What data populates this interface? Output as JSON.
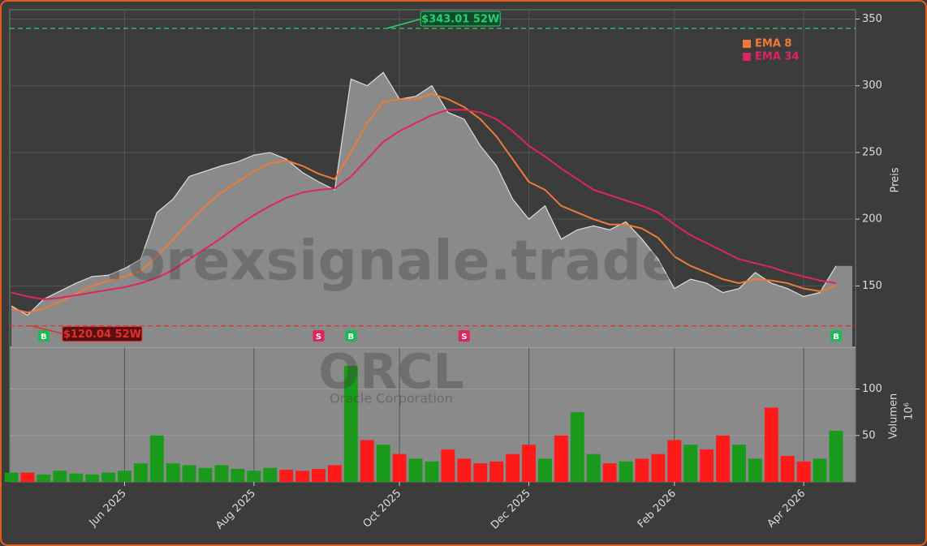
{
  "chart_data": [
    {
      "type": "area",
      "watermark": "forexsignale.trade",
      "ticker": "ORCL",
      "company": "Oracle Corporation",
      "ylabel": "Preis",
      "ylim": [
        104,
        357
      ],
      "yticks": [
        150,
        200,
        250,
        300,
        350
      ],
      "grid": true,
      "color": "#8a8a8a",
      "values": [
        135,
        128,
        140,
        146,
        152,
        157,
        158,
        163,
        170,
        205,
        215,
        232,
        236,
        240,
        243,
        248,
        250,
        245,
        235,
        228,
        222,
        305,
        300,
        310,
        290,
        292,
        300,
        280,
        275,
        255,
        240,
        215,
        200,
        210,
        185,
        192,
        195,
        192,
        198,
        185,
        170,
        148,
        155,
        152,
        145,
        148,
        160,
        152,
        148,
        142,
        145,
        165
      ],
      "series": [
        {
          "name": "EMA 8",
          "color": "#f07a3a",
          "values": [
            133,
            130,
            133,
            138,
            144,
            150,
            154,
            157,
            161,
            172,
            185,
            198,
            210,
            220,
            228,
            236,
            242,
            244,
            240,
            234,
            230,
            250,
            272,
            288,
            290,
            290,
            294,
            290,
            284,
            275,
            262,
            245,
            228,
            222,
            210,
            205,
            200,
            196,
            196,
            193,
            186,
            172,
            165,
            160,
            155,
            152,
            155,
            154,
            152,
            148,
            146,
            150
          ]
        },
        {
          "name": "EMA 34",
          "color": "#e0245e",
          "values": [
            145,
            142,
            140,
            141,
            143,
            145,
            147,
            149,
            152,
            156,
            162,
            170,
            178,
            186,
            195,
            203,
            210,
            216,
            220,
            222,
            223,
            232,
            245,
            258,
            266,
            272,
            278,
            282,
            282,
            280,
            275,
            266,
            255,
            247,
            238,
            230,
            222,
            218,
            214,
            210,
            205,
            196,
            188,
            182,
            176,
            170,
            167,
            164,
            160,
            157,
            154,
            152
          ]
        }
      ],
      "legend": "upper right",
      "annotations": [
        {
          "text": "$343.01 52W",
          "value": 343.01,
          "color": "#2ecc71"
        },
        {
          "text": "$120.04 52W",
          "value": 120.04,
          "color": "#e03030"
        }
      ],
      "signals": [
        null,
        null,
        "B",
        null,
        null,
        null,
        null,
        null,
        null,
        null,
        null,
        null,
        null,
        null,
        null,
        null,
        null,
        null,
        null,
        "S",
        null,
        "B",
        null,
        null,
        null,
        null,
        null,
        null,
        "S",
        null,
        null,
        null,
        null,
        null,
        null,
        null,
        null,
        null,
        null,
        null,
        null,
        null,
        null,
        null,
        null,
        null,
        null,
        null,
        null,
        null,
        null,
        "B"
      ],
      "signal_colors": {
        "B": "#1db954",
        "S": "#e0245e"
      }
    },
    {
      "type": "bar",
      "ylabel": "Volumen",
      "scale_label": "10⁶",
      "ylim": [
        0,
        145
      ],
      "yticks": [
        50,
        100
      ],
      "grid": true,
      "up_color": "#1a9a1a",
      "down_color": "#ff1a1a",
      "categories": [
        null,
        null,
        null,
        null,
        null,
        null,
        null,
        "Jun 2025",
        null,
        null,
        null,
        null,
        null,
        null,
        null,
        "Aug 2025",
        null,
        null,
        null,
        null,
        null,
        null,
        null,
        null,
        "Oct 2025",
        null,
        null,
        null,
        null,
        null,
        null,
        null,
        "Dec 2025",
        null,
        null,
        null,
        null,
        null,
        null,
        null,
        null,
        "Feb 2026",
        null,
        null,
        null,
        null,
        null,
        null,
        null,
        "Apr 2026",
        null,
        null
      ],
      "values": [
        10,
        10,
        8,
        12,
        9,
        8,
        10,
        12,
        20,
        50,
        20,
        18,
        15,
        18,
        14,
        12,
        15,
        13,
        12,
        14,
        18,
        125,
        45,
        40,
        30,
        25,
        22,
        35,
        25,
        20,
        22,
        30,
        40,
        25,
        50,
        75,
        30,
        20,
        22,
        25,
        30,
        45,
        40,
        35,
        50,
        40,
        25,
        80,
        28,
        22,
        25,
        55
      ]
    }
  ]
}
